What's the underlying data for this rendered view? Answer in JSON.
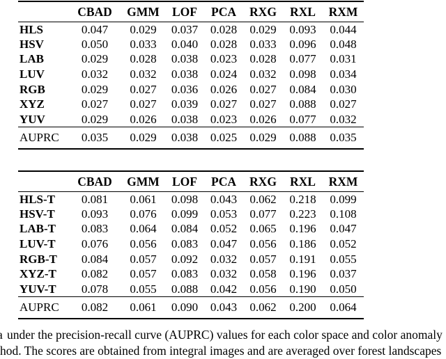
{
  "colors": {
    "background": "#ffffff",
    "text": "#000000",
    "rule": "#000000"
  },
  "tables": [
    {
      "header": [
        "CBAD",
        "GMM",
        "LOF",
        "PCA",
        "RXG",
        "RXL",
        "RXM"
      ],
      "rows": [
        {
          "label": "HLS",
          "values": [
            "0.047",
            "0.029",
            "0.037",
            "0.028",
            "0.029",
            "0.093",
            "0.044"
          ]
        },
        {
          "label": "HSV",
          "values": [
            "0.050",
            "0.033",
            "0.040",
            "0.028",
            "0.033",
            "0.096",
            "0.048"
          ]
        },
        {
          "label": "LAB",
          "values": [
            "0.029",
            "0.028",
            "0.038",
            "0.023",
            "0.028",
            "0.077",
            "0.031"
          ]
        },
        {
          "label": "LUV",
          "values": [
            "0.032",
            "0.032",
            "0.038",
            "0.024",
            "0.032",
            "0.098",
            "0.034"
          ]
        },
        {
          "label": "RGB",
          "values": [
            "0.029",
            "0.027",
            "0.036",
            "0.026",
            "0.027",
            "0.084",
            "0.030"
          ]
        },
        {
          "label": "XYZ",
          "values": [
            "0.027",
            "0.027",
            "0.039",
            "0.027",
            "0.027",
            "0.088",
            "0.027"
          ]
        },
        {
          "label": "YUV",
          "values": [
            "0.029",
            "0.026",
            "0.038",
            "0.023",
            "0.026",
            "0.077",
            "0.032"
          ]
        }
      ],
      "summary": {
        "label": "AUPRC",
        "values": [
          "0.035",
          "0.029",
          "0.038",
          "0.025",
          "0.029",
          "0.088",
          "0.035"
        ]
      }
    },
    {
      "header": [
        "CBAD",
        "GMM",
        "LOF",
        "PCA",
        "RXG",
        "RXL",
        "RXM"
      ],
      "rows": [
        {
          "label": "HLS-T",
          "values": [
            "0.081",
            "0.061",
            "0.098",
            "0.043",
            "0.062",
            "0.218",
            "0.099"
          ]
        },
        {
          "label": "HSV-T",
          "values": [
            "0.093",
            "0.076",
            "0.099",
            "0.053",
            "0.077",
            "0.223",
            "0.108"
          ]
        },
        {
          "label": "LAB-T",
          "values": [
            "0.083",
            "0.064",
            "0.084",
            "0.052",
            "0.065",
            "0.196",
            "0.047"
          ]
        },
        {
          "label": "LUV-T",
          "values": [
            "0.076",
            "0.056",
            "0.083",
            "0.047",
            "0.056",
            "0.186",
            "0.052"
          ]
        },
        {
          "label": "RGB-T",
          "values": [
            "0.084",
            "0.057",
            "0.092",
            "0.032",
            "0.057",
            "0.191",
            "0.055"
          ]
        },
        {
          "label": "XYZ-T",
          "values": [
            "0.082",
            "0.057",
            "0.083",
            "0.032",
            "0.058",
            "0.196",
            "0.037"
          ]
        },
        {
          "label": "YUV-T",
          "values": [
            "0.078",
            "0.055",
            "0.088",
            "0.042",
            "0.056",
            "0.190",
            "0.050"
          ]
        }
      ],
      "summary": {
        "label": "AUPRC",
        "values": [
          "0.082",
          "0.061",
          "0.090",
          "0.043",
          "0.062",
          "0.200",
          "0.064"
        ]
      }
    }
  ],
  "caption": {
    "fragment": "a",
    "line1": "under the precision-recall curve (AUPRC) values for each color space and color anomaly",
    "line2": "hod. The scores are obtained from integral images and are averaged over forest landscapes"
  }
}
